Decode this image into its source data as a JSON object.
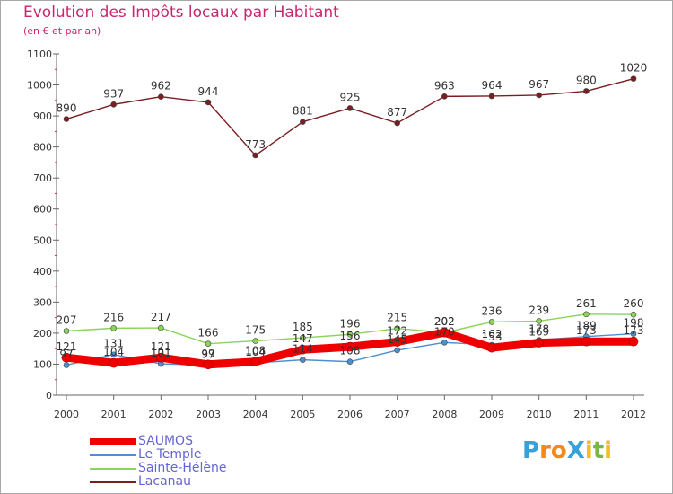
{
  "header": {
    "title": "Evolution des Impôts locaux par Habitant",
    "subtitle": "(en € et par an)"
  },
  "logo": {
    "text": "ProXiti",
    "letters": [
      {
        "ch": "P",
        "color": "#3aa0d8"
      },
      {
        "ch": "r",
        "color": "#f08a1e"
      },
      {
        "ch": "o",
        "color": "#f08a1e"
      },
      {
        "ch": "X",
        "color": "#3aa0d8"
      },
      {
        "ch": "i",
        "color": "#f0c020"
      },
      {
        "ch": "t",
        "color": "#7ab648"
      },
      {
        "ch": "i",
        "color": "#f0c020"
      }
    ]
  },
  "chart_data": {
    "type": "line",
    "title": "Evolution des Impôts locaux par Habitant",
    "subtitle": "(en € et par an)",
    "x": [
      "2000",
      "2001",
      "2002",
      "2003",
      "2004",
      "2005",
      "2006",
      "2007",
      "2008",
      "2009",
      "2010",
      "2011",
      "2012"
    ],
    "ylim": [
      0,
      1100
    ],
    "yticks": [
      0,
      100,
      200,
      300,
      400,
      500,
      600,
      700,
      800,
      900,
      1000,
      1100
    ],
    "grid": false,
    "legend_position": "bottom-left",
    "series": [
      {
        "name": "SAUMOS",
        "color": "#ee0000",
        "values": [
          121,
          104,
          121,
          99,
          108,
          147,
          156,
          172,
          202,
          153,
          169,
          173,
          173
        ]
      },
      {
        "name": "Le Temple",
        "color": "#4d8fd0",
        "values": [
          97,
          131,
          101,
          97,
          104,
          114,
          108,
          145,
          170,
          162,
          178,
          189,
          198
        ]
      },
      {
        "name": "Sainte-Hélène",
        "color": "#8ad45a",
        "values": [
          207,
          216,
          217,
          166,
          175,
          185,
          196,
          215,
          202,
          236,
          239,
          261,
          260
        ]
      },
      {
        "name": "Lacanau",
        "color": "#7a1e22",
        "values": [
          890,
          937,
          962,
          944,
          773,
          881,
          925,
          877,
          963,
          964,
          967,
          980,
          1020
        ]
      }
    ]
  }
}
